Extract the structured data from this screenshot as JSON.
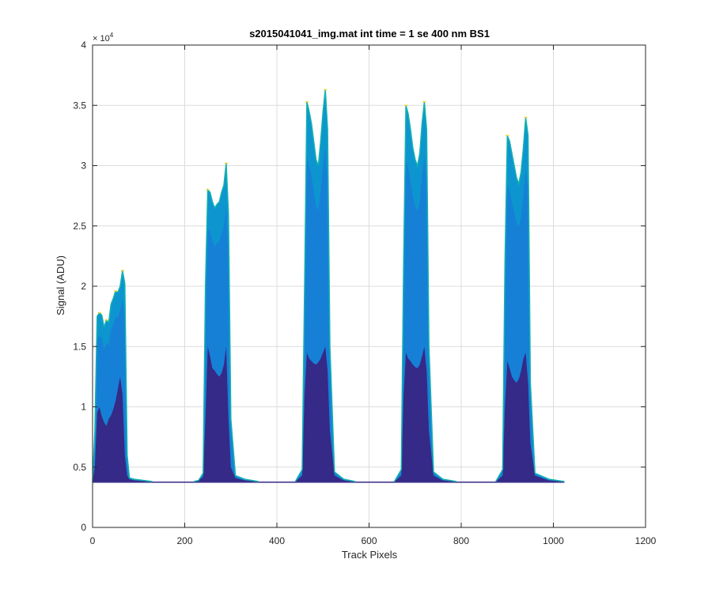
{
  "chart_data": {
    "type": "area",
    "title": "s2015041041_img.mat int time = 1 se  400 nm BS1",
    "xlabel": "Track Pixels",
    "ylabel": "Signal (ADU)",
    "xlim": [
      0,
      1200
    ],
    "ylim": [
      0,
      40000
    ],
    "xticks": [
      0,
      200,
      400,
      600,
      800,
      1000,
      1200
    ],
    "yticks": [
      0,
      0.5,
      1,
      1.5,
      2,
      2.5,
      3,
      3.5,
      4
    ],
    "yticks_values": [
      0,
      5000,
      10000,
      15000,
      20000,
      25000,
      30000,
      35000,
      40000
    ],
    "y_exponent_label": "× 10",
    "y_exponent_power": "4",
    "grid": true,
    "baseline": 3800,
    "x_extent": [
      0,
      1024
    ],
    "peaks": [
      {
        "x": [
          0,
          5,
          10,
          15,
          20,
          25,
          30,
          35,
          40,
          45,
          50,
          55,
          60,
          65,
          70,
          75,
          80,
          90,
          130
        ],
        "max": [
          3800,
          8000,
          17500,
          17800,
          17600,
          16600,
          17200,
          17000,
          18500,
          19000,
          19600,
          19500,
          20000,
          21300,
          20200,
          6000,
          4100,
          4000,
          3800
        ],
        "dark": [
          3800,
          5000,
          9500,
          10000,
          9200,
          8700,
          8400,
          9000,
          9300,
          9800,
          10500,
          11500,
          12500,
          11000,
          6000,
          4300,
          4000,
          3900,
          3800
        ]
      },
      {
        "x": [
          220,
          230,
          240,
          245,
          250,
          255,
          260,
          265,
          270,
          275,
          280,
          285,
          290,
          295,
          300,
          310,
          330,
          360
        ],
        "max": [
          3800,
          3900,
          4500,
          20000,
          28000,
          27800,
          27000,
          26500,
          26800,
          27000,
          27800,
          28400,
          30200,
          26000,
          9000,
          4300,
          4000,
          3800
        ],
        "dark": [
          3800,
          3900,
          4200,
          9000,
          15000,
          14200,
          13200,
          13000,
          12700,
          12500,
          12800,
          13500,
          15000,
          9000,
          5000,
          4100,
          3900,
          3800
        ]
      },
      {
        "x": [
          440,
          455,
          460,
          465,
          470,
          475,
          480,
          485,
          490,
          495,
          500,
          505,
          510,
          515,
          525,
          545,
          570
        ],
        "max": [
          3800,
          4800,
          20000,
          35300,
          34500,
          33500,
          32000,
          30500,
          30000,
          32000,
          34500,
          36300,
          33000,
          15000,
          4600,
          4000,
          3800
        ],
        "dark": [
          3800,
          4300,
          11000,
          14500,
          14000,
          13800,
          13600,
          13500,
          13700,
          14000,
          14500,
          15000,
          13000,
          8000,
          4300,
          3900,
          3800
        ]
      },
      {
        "x": [
          655,
          670,
          675,
          680,
          685,
          690,
          695,
          700,
          705,
          710,
          715,
          720,
          725,
          730,
          740,
          760,
          790
        ],
        "max": [
          3800,
          4800,
          22000,
          35000,
          34300,
          33000,
          31500,
          30500,
          30000,
          31000,
          33500,
          35300,
          33000,
          15000,
          4600,
          4000,
          3800
        ],
        "dark": [
          3800,
          4300,
          11000,
          14500,
          14000,
          13800,
          13500,
          13300,
          13200,
          13500,
          14200,
          15000,
          13000,
          8000,
          4300,
          3900,
          3800
        ]
      },
      {
        "x": [
          875,
          890,
          895,
          900,
          905,
          910,
          915,
          920,
          925,
          930,
          935,
          940,
          945,
          950,
          960,
          990,
          1024
        ],
        "max": [
          3800,
          4800,
          22000,
          32500,
          32000,
          31000,
          30000,
          29000,
          28500,
          29500,
          31500,
          34000,
          32500,
          12000,
          4500,
          4000,
          3800
        ],
        "dark": [
          3800,
          4300,
          10000,
          13800,
          13200,
          12500,
          12200,
          12000,
          12300,
          13000,
          14000,
          14500,
          12000,
          7000,
          4300,
          3900,
          3800
        ]
      }
    ],
    "colors": {
      "top_fill": "#0d95d0",
      "mid_fill": "#1f6fdc",
      "dark_fill": "#352a87",
      "edge_teal": "#14b2b0",
      "edge_yellow": "#e6d52a",
      "grid": "#dcdcdc",
      "axis": "#262626"
    }
  }
}
